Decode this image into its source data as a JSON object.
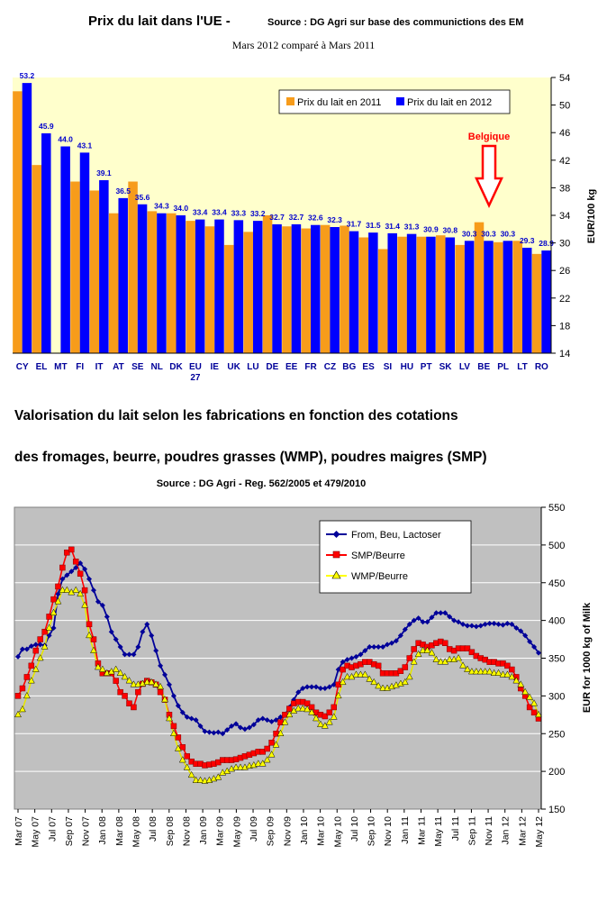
{
  "charts": [
    {
      "title": "Prix du lait dans l'UE - ",
      "source": "Source : DG Agri sur base des communictions des EM",
      "subtitle": "Mars 2012 comparé à Mars 2011",
      "ylabel": "EUR/100 kg",
      "annotation": "Belgique"
    },
    {
      "title_line1": "Valorisation du lait selon les fabrications en fonction des cotations",
      "title_line2": "des fromages, beurre, poudres grasses (WMP), poudres maigres (SMP)",
      "source": "Source : DG Agri - Reg. 562/2005 et 479/2010",
      "ylabel": "EUR for 1000 kg of Milk"
    }
  ],
  "chart_data": [
    {
      "type": "bar",
      "categories": [
        "CY",
        "EL",
        "MT",
        "FI",
        "IT",
        "AT",
        "SE",
        "NL",
        "DK",
        "EU 27",
        "IE",
        "UK",
        "LU",
        "DE",
        "EE",
        "FR",
        "CZ",
        "BG",
        "ES",
        "SI",
        "HU",
        "PT",
        "SK",
        "LV",
        "BE",
        "PL",
        "LT",
        "RO"
      ],
      "series": [
        {
          "name": "Prix du lait en 2011",
          "color": "#f79c1b",
          "values": [
            52.0,
            41.3,
            null,
            38.9,
            37.6,
            34.3,
            38.9,
            34.6,
            34.3,
            33.2,
            32.4,
            29.7,
            31.6,
            34.0,
            32.4,
            32.1,
            32.6,
            32.5,
            30.8,
            29.1,
            30.9,
            30.9,
            31.1,
            29.7,
            33.0,
            30.1,
            30.3,
            28.4
          ]
        },
        {
          "name": "Prix du lait en 2012",
          "color": "#0000ff",
          "values": [
            53.2,
            45.9,
            44.0,
            43.1,
            39.1,
            36.5,
            35.6,
            34.3,
            34.0,
            33.4,
            33.4,
            33.3,
            33.2,
            32.7,
            32.7,
            32.6,
            32.3,
            31.7,
            31.5,
            31.4,
            31.3,
            30.9,
            30.8,
            30.3,
            30.3,
            30.3,
            29.3,
            28.9
          ]
        }
      ],
      "value_labels": [
        "53.2",
        "45.9",
        "44.0",
        "43.1",
        "39.1",
        "36.5",
        "35.6",
        "34.3",
        "34.0",
        "33.4",
        "33.4",
        "33.3",
        "33.2",
        "32.7",
        "32.7",
        "32.6",
        "32.3",
        "31.7",
        "31.5",
        "31.4",
        "31.3",
        "30.9",
        "30.8",
        "30.3",
        "30.3",
        "30.3",
        "29.3",
        "28.9"
      ],
      "ylim": [
        14,
        54
      ],
      "yticks": [
        14,
        18,
        22,
        26,
        30,
        34,
        38,
        42,
        46,
        50,
        54
      ],
      "legend": "top-right",
      "grid": false
    },
    {
      "type": "line",
      "x_ticks": [
        "Mar 07",
        "May 07",
        "Jul 07",
        "Sep 07",
        "Nov 07",
        "Jan 08",
        "Mar 08",
        "May 08",
        "Jul 08",
        "Sep 08",
        "Nov 08",
        "Jan 09",
        "Mar 09",
        "May 09",
        "Jul 09",
        "Sep 09",
        "Nov 09",
        "Jan 10",
        "Mar 10",
        "May 10",
        "Jul 10",
        "Sep 10",
        "Nov 10",
        "Jan 11",
        "Mar 11",
        "May 11",
        "Jul 11",
        "Sep 11",
        "Nov 11",
        "Jan 12",
        "Mar 12",
        "May 12"
      ],
      "ylim": [
        150,
        550
      ],
      "yticks": [
        150,
        200,
        250,
        300,
        350,
        400,
        450,
        500,
        550
      ],
      "legend": "top-right",
      "grid": true,
      "series": [
        {
          "name": "From, Beu, Lactoser",
          "color": "#000099",
          "marker": "diamond",
          "values": [
            352,
            362,
            362,
            366,
            368,
            368,
            367,
            380,
            390,
            435,
            455,
            460,
            465,
            470,
            476,
            468,
            455,
            440,
            425,
            420,
            405,
            385,
            375,
            365,
            355,
            355,
            355,
            365,
            385,
            395,
            380,
            360,
            340,
            328,
            315,
            300,
            287,
            278,
            272,
            270,
            268,
            260,
            253,
            252,
            251,
            252,
            250,
            255,
            260,
            263,
            258,
            256,
            258,
            262,
            268,
            270,
            268,
            266,
            268,
            272,
            275,
            285,
            295,
            305,
            310,
            312,
            312,
            312,
            310,
            310,
            312,
            315,
            335,
            345,
            348,
            350,
            352,
            355,
            360,
            365,
            365,
            365,
            365,
            368,
            370,
            373,
            380,
            388,
            395,
            400,
            403,
            398,
            398,
            404,
            410,
            410,
            410,
            405,
            400,
            398,
            395,
            393,
            393,
            392,
            393,
            395,
            396,
            396,
            395,
            394,
            396,
            395,
            390,
            386,
            380,
            372,
            365,
            357
          ]
        },
        {
          "name": "SMP/Beurre",
          "color": "#ff0000",
          "marker": "square",
          "values": [
            300,
            310,
            325,
            340,
            360,
            375,
            385,
            405,
            428,
            445,
            470,
            490,
            494,
            478,
            462,
            440,
            395,
            375,
            343,
            330,
            330,
            330,
            320,
            305,
            300,
            290,
            285,
            305,
            316,
            320,
            318,
            315,
            305,
            295,
            275,
            260,
            245,
            232,
            220,
            213,
            210,
            210,
            208,
            209,
            210,
            212,
            215,
            215,
            215,
            216,
            218,
            220,
            222,
            224,
            226,
            226,
            230,
            238,
            250,
            265,
            275,
            283,
            290,
            292,
            292,
            290,
            285,
            278,
            275,
            273,
            278,
            285,
            315,
            335,
            340,
            338,
            340,
            342,
            345,
            345,
            342,
            340,
            330,
            330,
            330,
            330,
            333,
            338,
            350,
            362,
            370,
            368,
            365,
            367,
            370,
            372,
            370,
            362,
            360,
            363,
            363,
            363,
            358,
            353,
            350,
            348,
            345,
            345,
            343,
            343,
            340,
            335,
            325,
            310,
            300,
            285,
            278,
            270
          ]
        },
        {
          "name": "WMP/Beurre",
          "color": "#ffff00",
          "marker": "triangle",
          "values": [
            275,
            282,
            300,
            320,
            335,
            350,
            365,
            390,
            410,
            425,
            440,
            440,
            437,
            440,
            435,
            420,
            380,
            360,
            338,
            335,
            330,
            332,
            335,
            330,
            325,
            320,
            315,
            315,
            316,
            318,
            318,
            315,
            312,
            295,
            270,
            250,
            230,
            215,
            205,
            195,
            188,
            188,
            187,
            188,
            190,
            192,
            198,
            200,
            203,
            205,
            205,
            205,
            207,
            208,
            210,
            210,
            215,
            222,
            235,
            250,
            265,
            275,
            280,
            283,
            283,
            282,
            278,
            270,
            262,
            260,
            265,
            272,
            300,
            318,
            325,
            325,
            328,
            328,
            328,
            322,
            318,
            313,
            310,
            310,
            312,
            314,
            316,
            318,
            325,
            345,
            355,
            360,
            360,
            357,
            348,
            345,
            345,
            348,
            348,
            350,
            340,
            335,
            332,
            332,
            332,
            332,
            332,
            330,
            330,
            328,
            328,
            325,
            320,
            315,
            305,
            298,
            290,
            275
          ]
        }
      ]
    }
  ]
}
